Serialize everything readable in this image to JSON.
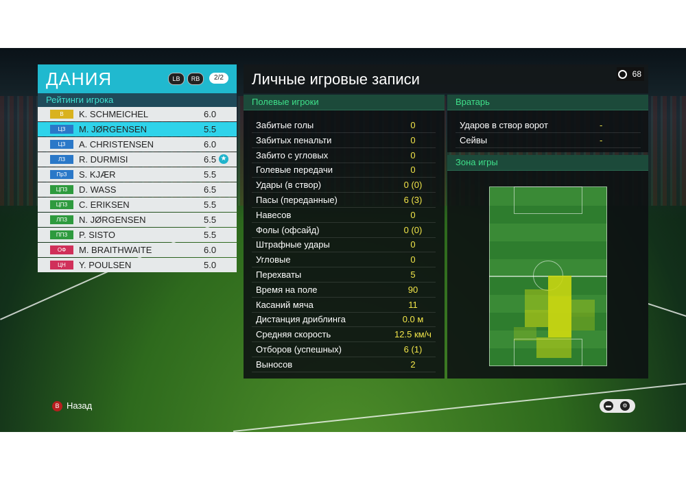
{
  "team": {
    "name": "ДАНИЯ",
    "lb_label": "LB",
    "rb_label": "RB",
    "page": "2/2",
    "ratings_title": "Рейтинги игрока",
    "players": [
      {
        "pos": "В",
        "name": "K. SCHMEICHEL",
        "rating": "6.0",
        "pos_color": "#d9b21e"
      },
      {
        "pos": "ЦЗ",
        "name": "M. JØRGENSEN",
        "rating": "5.5",
        "pos_color": "#2a78c8"
      },
      {
        "pos": "ЦЗ",
        "name": "A. CHRISTENSEN",
        "rating": "6.0",
        "pos_color": "#2a78c8"
      },
      {
        "pos": "ЛЗ",
        "name": "R. DURMISI",
        "rating": "6.5",
        "pos_color": "#2a78c8",
        "star": true
      },
      {
        "pos": "ПрЗ",
        "name": "S. KJÆR",
        "rating": "5.5",
        "pos_color": "#2a78c8"
      },
      {
        "pos": "ЦПЗ",
        "name": "D. WASS",
        "rating": "6.5",
        "pos_color": "#2e9a3e"
      },
      {
        "pos": "ЦПЗ",
        "name": "C. ERIKSEN",
        "rating": "5.5",
        "pos_color": "#2e9a3e"
      },
      {
        "pos": "ЛПЗ",
        "name": "N. JØRGENSEN",
        "rating": "5.5",
        "pos_color": "#2e9a3e"
      },
      {
        "pos": "ППЗ",
        "name": "P. SISTO",
        "rating": "5.5",
        "pos_color": "#2e9a3e"
      },
      {
        "pos": "ОФ",
        "name": "M. BRAITHWAITE",
        "rating": "6.0",
        "pos_color": "#d0305a"
      },
      {
        "pos": "ЦН",
        "name": "Y. POULSEN",
        "rating": "5.0",
        "pos_color": "#d0305a"
      }
    ],
    "selected_index": 1
  },
  "main": {
    "title": "Личные игровые записи",
    "timer": "68",
    "field_header": "Полевые игроки",
    "stats": [
      {
        "label": "Забитые голы",
        "value": "0"
      },
      {
        "label": "Забитых пенальти",
        "value": "0"
      },
      {
        "label": "Забито с угловых",
        "value": "0"
      },
      {
        "label": "Голевые передачи",
        "value": "0"
      },
      {
        "label": "Удары (в створ)",
        "value": "0 (0)"
      },
      {
        "label": "Пасы (переданные)",
        "value": "6 (3)"
      },
      {
        "label": "Навесов",
        "value": "0"
      },
      {
        "label": "Фолы (офсайд)",
        "value": "0 (0)"
      },
      {
        "label": "Штрафные удары",
        "value": "0"
      },
      {
        "label": "Угловые",
        "value": "0"
      },
      {
        "label": "Перехваты",
        "value": "5"
      },
      {
        "label": "Время на поле",
        "value": "90"
      },
      {
        "label": "Касаний мяча",
        "value": "11"
      },
      {
        "label": "Дистанция дриблинга",
        "value": "0.0 м"
      },
      {
        "label": "Средняя скорость",
        "value": "12.5 км/ч"
      },
      {
        "label": "Отборов (успешных)",
        "value": "6 (1)"
      },
      {
        "label": "Выносов",
        "value": "2"
      }
    ],
    "gk_header": "Вратарь",
    "gk_stats": [
      {
        "label": "Ударов в створ ворот",
        "value": "-"
      },
      {
        "label": "Сейвы",
        "value": "-"
      }
    ],
    "zone_header": "Зона игры"
  },
  "footer": {
    "b_icon": "B",
    "back_label": "Назад"
  },
  "colors": {
    "accent": "#20b9cf",
    "selected_row": "#2fd3ea",
    "stat_value": "#f2e64a",
    "section_header_text": "#3fe08a",
    "heat": "#c8d612"
  }
}
